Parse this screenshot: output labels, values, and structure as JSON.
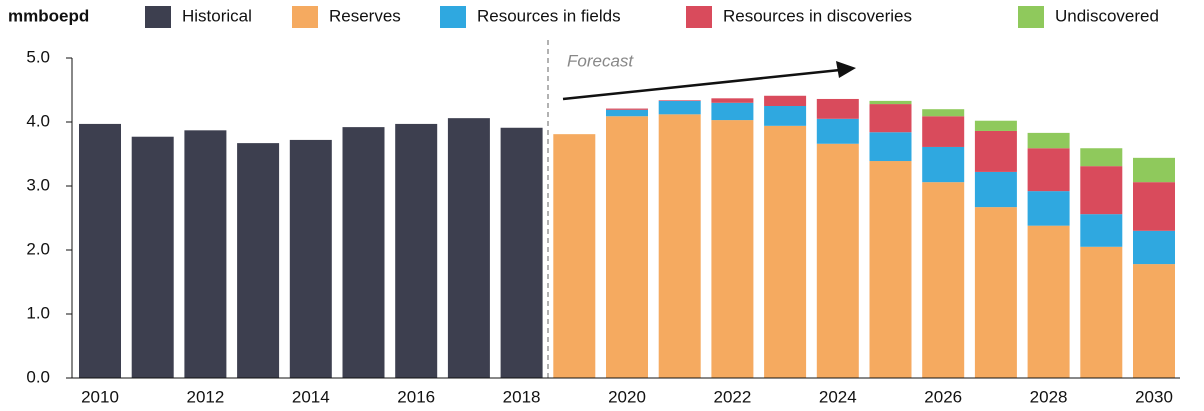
{
  "chart_data": {
    "type": "bar",
    "stacked": true,
    "unit_label": "mmboepd",
    "annotation": "Forecast",
    "categories": [
      "2010",
      null,
      "2012",
      null,
      "2014",
      null,
      "2016",
      null,
      "2018",
      null,
      "2020",
      null,
      "2022",
      null,
      "2024",
      null,
      "2026",
      null,
      "2028",
      null,
      "2030"
    ],
    "series": [
      {
        "name": "Historical",
        "color": "#3d3f4f",
        "values": [
          3.97,
          3.77,
          3.87,
          3.67,
          3.72,
          3.92,
          3.97,
          4.06,
          3.91,
          null,
          null,
          null,
          null,
          null,
          null,
          null,
          null,
          null,
          null,
          null,
          null
        ]
      },
      {
        "name": "Reserves",
        "color": "#f5aa60",
        "values": [
          null,
          null,
          null,
          null,
          null,
          null,
          null,
          null,
          null,
          3.81,
          4.09,
          4.12,
          4.03,
          3.94,
          3.66,
          3.39,
          3.06,
          2.67,
          2.38,
          2.05,
          1.78
        ]
      },
      {
        "name": "Resources in fields",
        "color": "#2fa8e0",
        "values": [
          null,
          null,
          null,
          null,
          null,
          null,
          null,
          null,
          null,
          null,
          0.1,
          0.21,
          0.27,
          0.31,
          0.39,
          0.45,
          0.55,
          0.55,
          0.54,
          0.51,
          0.52
        ]
      },
      {
        "name": "Resources in discoveries",
        "color": "#d94b5c",
        "values": [
          null,
          null,
          null,
          null,
          null,
          null,
          null,
          null,
          null,
          null,
          0.02,
          0.01,
          0.07,
          0.16,
          0.31,
          0.44,
          0.48,
          0.64,
          0.67,
          0.75,
          0.76
        ]
      },
      {
        "name": "Undiscovered",
        "color": "#8fc95c",
        "values": [
          null,
          null,
          null,
          null,
          null,
          null,
          null,
          null,
          null,
          null,
          null,
          null,
          null,
          null,
          null,
          0.05,
          0.11,
          0.16,
          0.24,
          0.28,
          0.38
        ]
      }
    ],
    "ylim": [
      0,
      5
    ],
    "yticks": [
      {
        "value": 0,
        "label": "0.0"
      },
      {
        "value": 1,
        "label": "1.0"
      },
      {
        "value": 2,
        "label": "2.0"
      },
      {
        "value": 3,
        "label": "3.0"
      },
      {
        "value": 4,
        "label": "4.0"
      },
      {
        "value": 5,
        "label": "5.0"
      }
    ],
    "grid": false,
    "legend": "top"
  }
}
